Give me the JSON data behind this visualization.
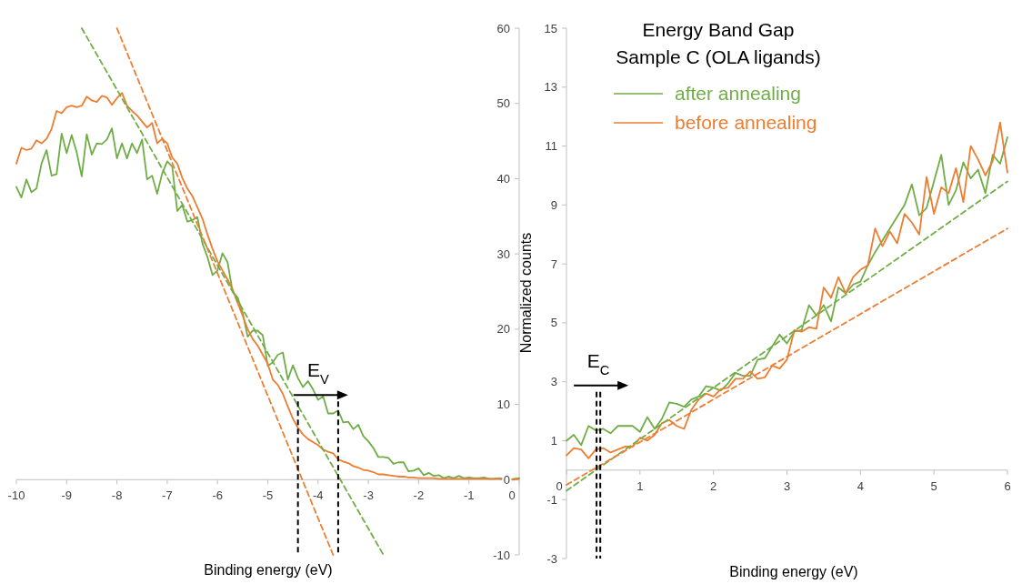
{
  "chart_data": [
    {
      "type": "line",
      "xlabel": "Binding energy (eV)",
      "x": [
        -10,
        -9.9,
        -9.8,
        -9.7,
        -9.6,
        -9.5,
        -9.4,
        -9.3,
        -9.2,
        -9.1,
        -9,
        -8.9,
        -8.8,
        -8.7,
        -8.6,
        -8.5,
        -8.4,
        -8.3,
        -8.2,
        -8.1,
        -8,
        -7.9,
        -7.8,
        -7.7,
        -7.6,
        -7.5,
        -7.4,
        -7.3,
        -7.2,
        -7.1,
        -7,
        -6.9,
        -6.8,
        -6.7,
        -6.6,
        -6.5,
        -6.4,
        -6.3,
        -6.2,
        -6.1,
        -6,
        -5.9,
        -5.8,
        -5.7,
        -5.6,
        -5.5,
        -5.4,
        -5.3,
        -5.2,
        -5.1,
        -5,
        -4.9,
        -4.8,
        -4.7,
        -4.6,
        -4.5,
        -4.4,
        -4.3,
        -4.2,
        -4.1,
        -4,
        -3.9,
        -3.8,
        -3.7,
        -3.6,
        -3.5,
        -3.4,
        -3.3,
        -3.2,
        -3.1,
        -3,
        -2.9,
        -2.8,
        -2.7,
        -2.6,
        -2.5,
        -2.4,
        -2.3,
        -2.2,
        -2.1,
        -2,
        -1.9,
        -1.8,
        -1.7,
        -1.6,
        -1.5,
        -1.4,
        -1.3,
        -1.2,
        -1.1,
        -1,
        -0.9,
        -0.8,
        -0.7,
        -0.6,
        -0.5,
        -0.4,
        -0.3,
        -0.2,
        -0.1,
        0
      ],
      "series": [
        {
          "color": "#70ad47",
          "values": [
            38.9,
            37.5,
            39.9,
            38.2,
            38.7,
            42,
            43.8,
            40.4,
            40.6,
            46,
            43.4,
            45.8,
            43.5,
            40.3,
            45.9,
            43.2,
            44.7,
            44.6,
            45.2,
            46.7,
            42.7,
            44.7,
            42.7,
            44.7,
            43.4,
            45.2,
            39.9,
            40.4,
            38,
            40.7,
            42.3,
            41.6,
            35.7,
            36.5,
            34.3,
            34.5,
            34.9,
            31.4,
            29.6,
            27.2,
            27.8,
            30.1,
            28.9,
            25,
            24.2,
            22.2,
            19,
            19.8,
            19.8,
            19.2,
            15.1,
            15.6,
            16.6,
            16.9,
            13.3,
            15.2,
            13.5,
            12.3,
            13.1,
            12,
            10.6,
            11.1,
            8.8,
            8.8,
            9.2,
            7.6,
            7.7,
            6.7,
            7.3,
            5.8,
            5.1,
            4.2,
            3,
            3,
            2.9,
            2.1,
            2.3,
            2.3,
            1.1,
            1.2,
            1.5,
            0.6,
            0.9,
            0.5,
            0.6,
            0.2,
            0.4,
            0.2,
            0.5,
            0.2,
            0.3,
            0.2,
            0.2,
            0.3,
            0.1,
            0.1,
            0.2,
            0.1,
            0,
            0.1,
            0.2
          ]
        },
        {
          "color": "#ed7d31",
          "values": [
            42,
            44.1,
            43.8,
            44,
            45.1,
            44.7,
            45.3,
            46.6,
            49,
            48.7,
            49.5,
            49.7,
            49.5,
            49.7,
            50.9,
            50.4,
            50.2,
            51,
            50.8,
            49.8,
            50.7,
            51.4,
            49.7,
            49,
            48.4,
            47.6,
            46.8,
            47.4,
            44.7,
            45.3,
            44.7,
            42.8,
            42,
            40.1,
            38.7,
            37.7,
            36.2,
            34.7,
            32.6,
            30.7,
            29,
            27.8,
            26.6,
            25.3,
            23.5,
            21.8,
            20,
            18.7,
            17.8,
            16.6,
            15.4,
            13.3,
            12.6,
            11.4,
            9.7,
            8.1,
            6.9,
            6,
            5.4,
            5,
            4.6,
            4,
            3.7,
            3.5,
            2.7,
            2.4,
            2.2,
            1.8,
            1.6,
            1.3,
            1.2,
            1,
            0.7,
            0.7,
            0.6,
            0.5,
            0.4,
            0.4,
            0.3,
            0.3,
            0.2,
            0.2,
            0.2,
            0.2,
            0.1,
            0.1,
            0.1,
            0.1,
            0.1,
            0.1,
            0.1,
            0.1,
            0.1,
            0.1,
            0.1,
            0.1,
            0.1,
            0,
            0,
            0,
            0.1
          ]
        },
        {
          "type": "line",
          "color": "#70ad47",
          "line_style": "dashed",
          "x": [
            -8.7,
            -2.7
          ],
          "values": [
            60,
            -10
          ]
        },
        {
          "type": "line",
          "color": "#ed7d31",
          "line_style": "dashed",
          "x": [
            -8,
            -3.7
          ],
          "values": [
            60,
            -10
          ]
        }
      ],
      "xlim": [
        -10,
        0
      ],
      "xticks": [
        -10,
        -9,
        -8,
        -7,
        -6,
        -5,
        -4,
        -3,
        -2,
        -1,
        0
      ],
      "ylim": [
        -10,
        60
      ],
      "yticks": [
        -10,
        0,
        10,
        20,
        30,
        40,
        50,
        60
      ],
      "ref_lines": [
        {
          "axis": "x",
          "value": -4.4,
          "color": "#000000",
          "line_style": "dashed"
        },
        {
          "axis": "x",
          "value": -3.6,
          "color": "#000000",
          "line_style": "dashed"
        }
      ],
      "annotations": [
        "E$_{V}$"
      ]
    },
    {
      "type": "line",
      "title": "Energy Band Gap",
      "subtitle": "Sample C (OLA ligands)",
      "xlabel": "Binding energy (eV)",
      "ylabel": "Normalized counts",
      "legend": "top",
      "x": [
        0,
        0.1,
        0.2,
        0.3,
        0.4,
        0.5,
        0.6,
        0.7,
        0.8,
        0.9,
        1,
        1.1,
        1.2,
        1.3,
        1.4,
        1.5,
        1.6,
        1.7,
        1.8,
        1.9,
        2,
        2.1,
        2.2,
        2.3,
        2.4,
        2.5,
        2.6,
        2.7,
        2.8,
        2.9,
        3,
        3.1,
        3.2,
        3.3,
        3.4,
        3.5,
        3.6,
        3.7,
        3.8,
        3.9,
        4,
        4.1,
        4.2,
        4.3,
        4.4,
        4.5,
        4.6,
        4.7,
        4.8,
        4.9,
        5,
        5.1,
        5.2,
        5.3,
        5.4,
        5.5,
        5.6,
        5.7,
        5.8,
        5.9,
        6
      ],
      "series": [
        {
          "name": "after annealing",
          "color": "#70ad47",
          "values": [
            1,
            1.2,
            0.85,
            1.5,
            1.35,
            1.4,
            1.25,
            1.5,
            1.5,
            1.5,
            1.3,
            1.8,
            1.4,
            1.75,
            2.3,
            2.25,
            2.15,
            2.4,
            2.5,
            2.85,
            2.8,
            2.7,
            2.95,
            3.3,
            3.2,
            3.2,
            3.75,
            3.8,
            4.2,
            4.6,
            4.3,
            4.7,
            4.75,
            5.6,
            5.25,
            5.6,
            5.05,
            6.2,
            6,
            6.3,
            6.4,
            6.95,
            7.4,
            7.8,
            8.2,
            8.6,
            9,
            9.7,
            8.65,
            8.9,
            9.8,
            10.7,
            9,
            9.5,
            10.45,
            9.9,
            10.2,
            9.4,
            10.7,
            10.4,
            11.3
          ]
        },
        {
          "name": "before annealing",
          "color": "#ed7d31",
          "values": [
            0.5,
            0.75,
            0.7,
            0.4,
            0.7,
            0.75,
            0.6,
            0.7,
            0.8,
            0.8,
            1.1,
            1,
            1.2,
            1.6,
            1.7,
            1.5,
            1.4,
            2.05,
            2.4,
            2.6,
            2.5,
            2.75,
            2.8,
            3.1,
            3.1,
            3.35,
            3.1,
            3.15,
            3.55,
            3.45,
            3.75,
            4.75,
            4.7,
            4.85,
            4.8,
            6.2,
            5.85,
            6.55,
            6,
            6.55,
            6.8,
            6.95,
            8.2,
            7.6,
            8.1,
            7.7,
            8.7,
            8.4,
            8,
            9.95,
            8.7,
            9.6,
            9.4,
            10.25,
            9.1,
            11,
            10.55,
            10,
            10.5,
            11.8,
            10.1
          ]
        },
        {
          "type": "line",
          "color": "#70ad47",
          "line_style": "dashed",
          "x": [
            0,
            6
          ],
          "values": [
            -0.7,
            9.8
          ]
        },
        {
          "type": "line",
          "color": "#ed7d31",
          "line_style": "dashed",
          "x": [
            0,
            6
          ],
          "values": [
            -0.5,
            8.2
          ]
        }
      ],
      "xlim": [
        0,
        6
      ],
      "xticks": [
        0,
        1,
        2,
        3,
        4,
        5,
        6
      ],
      "ylim": [
        -3,
        15
      ],
      "yticks": [
        -3,
        -1,
        1,
        3,
        5,
        7,
        9,
        11,
        13,
        15
      ],
      "ref_lines": [
        {
          "axis": "x",
          "value": 0.41,
          "color": "#000000",
          "line_style": "dashed"
        },
        {
          "axis": "x",
          "value": 0.46,
          "color": "#000000",
          "line_style": "dashed"
        }
      ],
      "annotations": [
        "E$_{C}$"
      ]
    }
  ]
}
